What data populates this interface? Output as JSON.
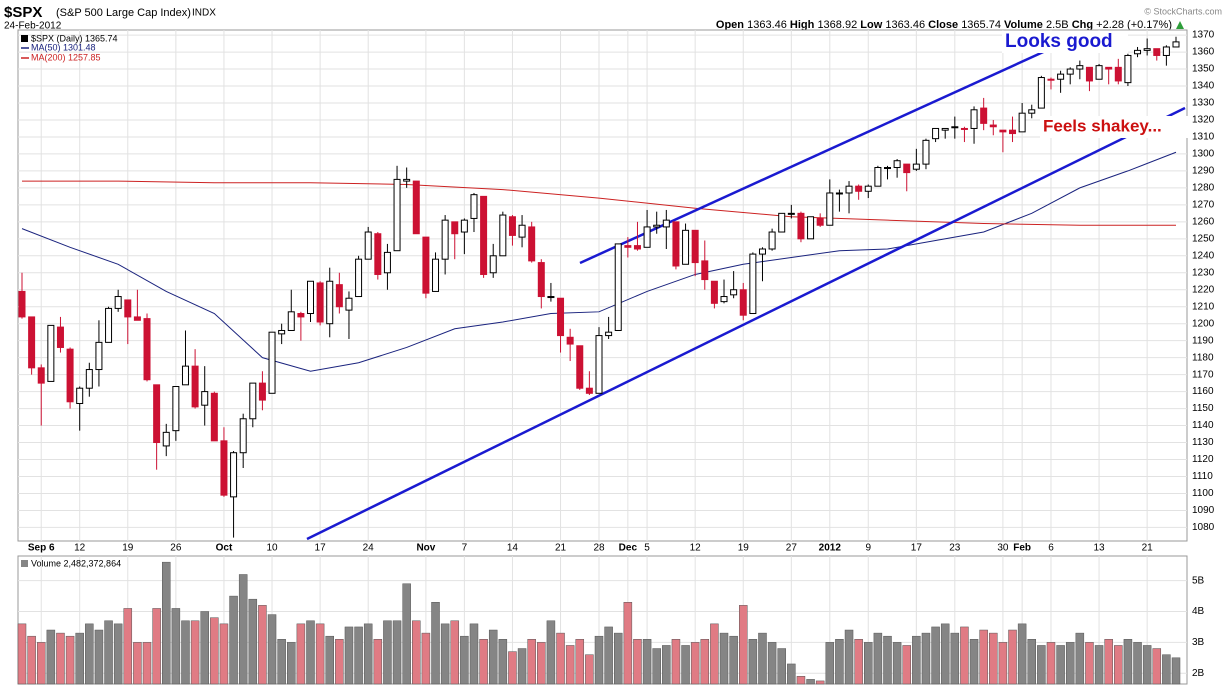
{
  "header": {
    "symbol": "$SPX",
    "name": "(S&P 500 Large Cap Index)",
    "exchange": "INDX",
    "date": "24-Feb-2012",
    "quote": [
      {
        "label": "Open",
        "value": "1363.46"
      },
      {
        "label": "High",
        "value": "1368.92"
      },
      {
        "label": "Low",
        "value": "1363.46"
      },
      {
        "label": "Close",
        "value": "1365.74"
      },
      {
        "label": "Volume",
        "value": "2.5B"
      },
      {
        "label": "Chg",
        "value": "+2.28 (+0.17%)"
      }
    ],
    "watermark": "© StockCharts.com",
    "annotations": [
      "Looks good",
      "Feels shakey..."
    ]
  },
  "chart_data": [
    {
      "type": "candlestick",
      "name": "$SPX (Daily) 1365.74",
      "up_color": "#000000",
      "down_color": "#cc1133",
      "x": [
        "2011-09-01",
        "2011-09-02",
        "2011-09-06",
        "2011-09-07",
        "2011-09-08",
        "2011-09-09",
        "2011-09-12",
        "2011-09-13",
        "2011-09-14",
        "2011-09-15",
        "2011-09-16",
        "2011-09-19",
        "2011-09-20",
        "2011-09-21",
        "2011-09-22",
        "2011-09-23",
        "2011-09-26",
        "2011-09-27",
        "2011-09-28",
        "2011-09-29",
        "2011-09-30",
        "2011-10-03",
        "2011-10-04",
        "2011-10-05",
        "2011-10-06",
        "2011-10-07",
        "2011-10-10",
        "2011-10-11",
        "2011-10-12",
        "2011-10-13",
        "2011-10-14",
        "2011-10-17",
        "2011-10-18",
        "2011-10-19",
        "2011-10-20",
        "2011-10-21",
        "2011-10-24",
        "2011-10-25",
        "2011-10-26",
        "2011-10-27",
        "2011-10-28",
        "2011-10-31",
        "2011-11-01",
        "2011-11-02",
        "2011-11-03",
        "2011-11-04",
        "2011-11-07",
        "2011-11-08",
        "2011-11-09",
        "2011-11-10",
        "2011-11-11",
        "2011-11-14",
        "2011-11-15",
        "2011-11-16",
        "2011-11-17",
        "2011-11-18",
        "2011-11-21",
        "2011-11-22",
        "2011-11-23",
        "2011-11-25",
        "2011-11-28",
        "2011-11-29",
        "2011-11-30",
        "2011-12-01",
        "2011-12-02",
        "2011-12-05",
        "2011-12-06",
        "2011-12-07",
        "2011-12-08",
        "2011-12-09",
        "2011-12-12",
        "2011-12-13",
        "2011-12-14",
        "2011-12-15",
        "2011-12-16",
        "2011-12-19",
        "2011-12-20",
        "2011-12-21",
        "2011-12-22",
        "2011-12-23",
        "2011-12-27",
        "2011-12-28",
        "2011-12-29",
        "2011-12-30",
        "2012-01-03",
        "2012-01-04",
        "2012-01-05",
        "2012-01-06",
        "2012-01-09",
        "2012-01-10",
        "2012-01-11",
        "2012-01-12",
        "2012-01-13",
        "2012-01-17",
        "2012-01-18",
        "2012-01-19",
        "2012-01-20",
        "2012-01-23",
        "2012-01-24",
        "2012-01-25",
        "2012-01-26",
        "2012-01-27",
        "2012-01-30",
        "2012-01-31",
        "2012-02-01",
        "2012-02-02",
        "2012-02-03",
        "2012-02-06",
        "2012-02-07",
        "2012-02-08",
        "2012-02-09",
        "2012-02-10",
        "2012-02-13",
        "2012-02-14",
        "2012-02-15",
        "2012-02-16",
        "2012-02-17",
        "2012-02-21",
        "2012-02-22",
        "2012-02-23",
        "2012-02-24"
      ],
      "open": [
        1219,
        1204,
        1174,
        1166,
        1198,
        1185,
        1153,
        1162,
        1173,
        1189,
        1209,
        1214,
        1204,
        1203,
        1164,
        1128,
        1137,
        1164,
        1175,
        1152,
        1159,
        1131,
        1098,
        1124,
        1144,
        1165,
        1159,
        1194,
        1196,
        1206,
        1206,
        1224,
        1200,
        1223,
        1208,
        1216,
        1238,
        1253,
        1230,
        1243,
        1284,
        1284,
        1251,
        1219,
        1238,
        1260,
        1254,
        1262,
        1275,
        1230,
        1240,
        1263,
        1251,
        1257,
        1236,
        1216,
        1215,
        1192,
        1187,
        1162,
        1159,
        1193,
        1196,
        1246,
        1246,
        1245,
        1257,
        1257,
        1260,
        1235,
        1255,
        1237,
        1225,
        1213,
        1217,
        1220,
        1206,
        1241,
        1244,
        1254,
        1265,
        1265,
        1250,
        1262,
        1258,
        1277,
        1277,
        1281,
        1278,
        1281,
        1292,
        1292,
        1294,
        1291,
        1294,
        1309,
        1314,
        1316,
        1315,
        1315,
        1327,
        1317,
        1314,
        1314,
        1313,
        1324,
        1327,
        1344,
        1344,
        1347,
        1350,
        1351,
        1344,
        1351,
        1351,
        1342,
        1359,
        1361,
        1362,
        1358,
        1363
      ],
      "high": [
        1230,
        1204,
        1176,
        1199,
        1204,
        1186,
        1163,
        1177,
        1202,
        1210,
        1220,
        1214,
        1220,
        1206,
        1164,
        1141,
        1163,
        1196,
        1185,
        1175,
        1160,
        1139,
        1125,
        1147,
        1165,
        1172,
        1195,
        1200,
        1220,
        1207,
        1225,
        1225,
        1233,
        1230,
        1219,
        1240,
        1257,
        1254,
        1247,
        1293,
        1292,
        1284,
        1251,
        1242,
        1264,
        1260,
        1262,
        1277,
        1275,
        1247,
        1266,
        1264,
        1264,
        1260,
        1238,
        1224,
        1215,
        1197,
        1187,
        1172,
        1198,
        1204,
        1247,
        1251,
        1260,
        1267,
        1266,
        1267,
        1260,
        1259,
        1255,
        1249,
        1225,
        1226,
        1231,
        1224,
        1242,
        1245,
        1256,
        1265,
        1270,
        1266,
        1263,
        1265,
        1285,
        1279,
        1284,
        1282,
        1282,
        1293,
        1293,
        1297,
        1294,
        1303,
        1309,
        1315,
        1315,
        1322,
        1316,
        1328,
        1333,
        1320,
        1314,
        1322,
        1330,
        1329,
        1346,
        1345,
        1349,
        1351,
        1355,
        1351,
        1353,
        1351,
        1356,
        1359,
        1363,
        1368,
        1362,
        1364,
        1369
      ],
      "low": [
        1203,
        1170,
        1140,
        1166,
        1183,
        1150,
        1137,
        1157,
        1163,
        1189,
        1207,
        1188,
        1202,
        1166,
        1114,
        1122,
        1131,
        1164,
        1150,
        1140,
        1131,
        1098,
        1074,
        1115,
        1139,
        1149,
        1159,
        1188,
        1196,
        1190,
        1201,
        1199,
        1192,
        1206,
        1191,
        1216,
        1238,
        1226,
        1220,
        1243,
        1280,
        1253,
        1215,
        1219,
        1229,
        1238,
        1241,
        1254,
        1227,
        1227,
        1240,
        1246,
        1245,
        1236,
        1209,
        1213,
        1183,
        1178,
        1161,
        1158,
        1159,
        1191,
        1196,
        1239,
        1243,
        1245,
        1253,
        1244,
        1232,
        1235,
        1228,
        1220,
        1209,
        1212,
        1215,
        1202,
        1206,
        1225,
        1243,
        1254,
        1262,
        1248,
        1250,
        1257,
        1258,
        1266,
        1265,
        1273,
        1274,
        1281,
        1285,
        1286,
        1278,
        1290,
        1291,
        1307,
        1309,
        1309,
        1307,
        1306,
        1314,
        1311,
        1301,
        1307,
        1313,
        1321,
        1327,
        1338,
        1336,
        1341,
        1344,
        1337,
        1344,
        1341,
        1341,
        1340,
        1357,
        1358,
        1355,
        1352,
        1363
      ],
      "close": [
        1204,
        1174,
        1165,
        1199,
        1186,
        1154,
        1162,
        1173,
        1189,
        1209,
        1216,
        1204,
        1202,
        1167,
        1130,
        1136,
        1163,
        1175,
        1151,
        1160,
        1131,
        1099,
        1124,
        1144,
        1165,
        1155,
        1195,
        1196,
        1207,
        1204,
        1225,
        1201,
        1225,
        1210,
        1215,
        1238,
        1254,
        1229,
        1242,
        1285,
        1285,
        1253,
        1218,
        1238,
        1261,
        1253,
        1261,
        1276,
        1229,
        1240,
        1264,
        1252,
        1258,
        1237,
        1216,
        1216,
        1193,
        1188,
        1162,
        1159,
        1193,
        1195,
        1247,
        1245,
        1244,
        1257,
        1258,
        1261,
        1234,
        1255,
        1236,
        1226,
        1212,
        1216,
        1220,
        1205,
        1241,
        1244,
        1254,
        1265,
        1265,
        1250,
        1263,
        1258,
        1277,
        1277,
        1281,
        1278,
        1281,
        1292,
        1292,
        1296,
        1289,
        1294,
        1308,
        1315,
        1315,
        1316,
        1315,
        1326,
        1318,
        1316,
        1313,
        1312,
        1324,
        1326,
        1345,
        1344,
        1347,
        1350,
        1352,
        1343,
        1352,
        1350,
        1343,
        1358,
        1361,
        1362,
        1358,
        1363,
        1366
      ],
      "series": [
        {
          "name": "MA(50) 1301.48",
          "color": "#1a237e",
          "x": [
            "2011-09-01",
            "2011-09-09",
            "2011-09-16",
            "2011-09-23",
            "2011-09-30",
            "2011-10-07",
            "2011-10-14",
            "2011-10-21",
            "2011-10-28",
            "2011-11-04",
            "2011-11-11",
            "2011-11-18",
            "2011-11-28",
            "2011-12-05",
            "2011-12-12",
            "2011-12-19",
            "2011-12-27",
            "2012-01-04",
            "2012-01-11",
            "2012-01-19",
            "2012-01-26",
            "2012-02-02",
            "2012-02-09",
            "2012-02-16",
            "2012-02-24"
          ],
          "values": [
            1256,
            1245,
            1235,
            1219,
            1206,
            1180,
            1172,
            1177,
            1186,
            1197,
            1201,
            1206,
            1207,
            1219,
            1229,
            1235,
            1239,
            1243,
            1244,
            1249,
            1254,
            1265,
            1280,
            1290,
            1301
          ]
        },
        {
          "name": "MA(200) 1257.85",
          "color": "#cc2222",
          "x": [
            "2011-09-01",
            "2011-09-16",
            "2011-09-30",
            "2011-10-14",
            "2011-10-28",
            "2011-11-11",
            "2011-11-28",
            "2011-12-12",
            "2011-12-27",
            "2012-01-11",
            "2012-01-26",
            "2012-02-09",
            "2012-02-24"
          ],
          "values": [
            1284,
            1284,
            1283,
            1283,
            1282,
            1279,
            1274,
            1268,
            1263,
            1261,
            1259,
            1258,
            1258
          ]
        }
      ],
      "ylim": [
        1072,
        1373
      ],
      "yticks": [
        1080,
        1090,
        1100,
        1110,
        1120,
        1130,
        1140,
        1150,
        1160,
        1170,
        1180,
        1190,
        1200,
        1210,
        1220,
        1230,
        1240,
        1250,
        1260,
        1270,
        1280,
        1290,
        1300,
        1310,
        1320,
        1330,
        1340,
        1350,
        1360,
        1370
      ],
      "xticks": [
        {
          "value": "2011-09-06",
          "label": "Sep 6"
        },
        {
          "value": "2011-09-12",
          "label": "12"
        },
        {
          "value": "2011-09-19",
          "label": "19"
        },
        {
          "value": "2011-09-26",
          "label": "26"
        },
        {
          "value": "2011-10-03",
          "label": "Oct"
        },
        {
          "value": "2011-10-10",
          "label": "10"
        },
        {
          "value": "2011-10-17",
          "label": "17"
        },
        {
          "value": "2011-10-24",
          "label": "24"
        },
        {
          "value": "2011-11-01",
          "label": "Nov"
        },
        {
          "value": "2011-11-07",
          "label": "7"
        },
        {
          "value": "2011-11-14",
          "label": "14"
        },
        {
          "value": "2011-11-21",
          "label": "21"
        },
        {
          "value": "2011-11-28",
          "label": "28"
        },
        {
          "value": "2011-12-01",
          "label": "Dec"
        },
        {
          "value": "2011-12-05",
          "label": "5"
        },
        {
          "value": "2011-12-12",
          "label": "12"
        },
        {
          "value": "2011-12-19",
          "label": "19"
        },
        {
          "value": "2011-12-27",
          "label": "27"
        },
        {
          "value": "2012-01-03",
          "label": "2012"
        },
        {
          "value": "2012-01-09",
          "label": "9"
        },
        {
          "value": "2012-01-17",
          "label": "17"
        },
        {
          "value": "2012-01-23",
          "label": "23"
        },
        {
          "value": "2012-01-30",
          "label": "30"
        },
        {
          "value": "2012-02-01",
          "label": "Feb"
        },
        {
          "value": "2012-02-06",
          "label": "6"
        },
        {
          "value": "2012-02-13",
          "label": "13"
        },
        {
          "value": "2012-02-21",
          "label": "21"
        }
      ],
      "grid": true
    },
    {
      "type": "bar",
      "name": "Volume 2,482,372,864",
      "up_color": "#858585",
      "down_color": "#e07b84",
      "values": [
        3.6,
        3.2,
        3.0,
        3.4,
        3.3,
        3.2,
        3.3,
        3.6,
        3.4,
        3.7,
        3.6,
        4.1,
        3.0,
        3.0,
        4.1,
        5.6,
        4.1,
        3.7,
        3.7,
        4.0,
        3.8,
        3.6,
        4.5,
        5.2,
        4.4,
        4.2,
        3.9,
        3.1,
        3.0,
        3.6,
        3.7,
        3.6,
        3.2,
        3.1,
        3.5,
        3.5,
        3.6,
        3.1,
        3.7,
        3.7,
        4.9,
        3.7,
        3.3,
        4.3,
        3.6,
        3.7,
        3.2,
        3.6,
        3.1,
        3.4,
        3.1,
        2.7,
        2.8,
        3.1,
        3.0,
        3.7,
        3.3,
        2.9,
        3.1,
        2.6,
        3.2,
        3.5,
        3.3,
        4.3,
        3.1,
        3.1,
        2.8,
        2.9,
        3.1,
        2.9,
        3.0,
        3.1,
        3.6,
        3.3,
        3.2,
        4.2,
        3.1,
        3.3,
        3.0,
        2.8,
        2.3,
        1.9,
        1.8,
        1.75,
        3.0,
        3.1,
        3.4,
        3.1,
        3.0,
        3.3,
        3.2,
        3.0,
        2.9,
        3.2,
        3.3,
        3.5,
        3.6,
        3.3,
        3.5,
        3.1,
        3.4,
        3.3,
        3.0,
        3.4,
        3.6,
        3.1,
        2.9,
        3.0,
        2.9,
        3.0,
        3.3,
        3.0,
        2.9,
        3.1,
        2.9,
        3.1,
        3.0,
        2.9,
        2.8,
        2.6,
        2.5
      ],
      "ylim": [
        1.65,
        5.8
      ],
      "yticks": [
        {
          "value": 2,
          "label": "2B"
        },
        {
          "value": 3,
          "label": "3B"
        },
        {
          "value": 4,
          "label": "4B"
        },
        {
          "value": 5,
          "label": "5B"
        }
      ],
      "grid": true
    }
  ]
}
